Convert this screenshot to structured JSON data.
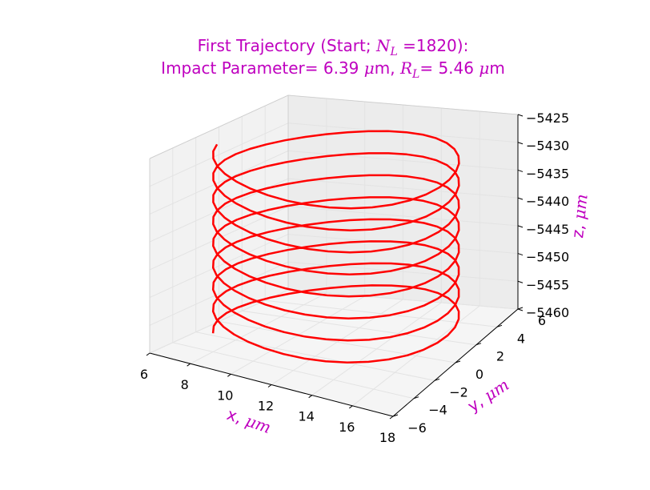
{
  "chart_data": {
    "type": "line",
    "projection": "3d",
    "title": {
      "line1_prefix": "First Trajectory (Start; ",
      "line1_sym": "N",
      "line1_sub": "L",
      "line1_suffix": " =1820):",
      "line2_prefix": "Impact Parameter= 6.39 ",
      "line2_unit_sym": "μ",
      "line2_unit_tail": "m, ",
      "line2_sym": "R",
      "line2_sub": "L",
      "line2_mid": "= 5.46 ",
      "line2_unit2_sym": "μ",
      "line2_unit2_tail": "m"
    },
    "xlabel": {
      "prefix": "x, ",
      "unit_sym": "μ",
      "unit_tail": "m"
    },
    "ylabel": {
      "prefix": "y, ",
      "unit_sym": "μ",
      "unit_tail": "m"
    },
    "zlabel": {
      "prefix": "z, ",
      "unit_sym": "μ",
      "unit_tail": "m"
    },
    "xlim": [
      6,
      18
    ],
    "ylim": [
      -6,
      6
    ],
    "zlim": [
      -5460,
      -5425
    ],
    "xticks": [
      "6",
      "8",
      "10",
      "12",
      "14",
      "16",
      "18"
    ],
    "yticks": [
      "−6",
      "−4",
      "−2",
      "0",
      "2",
      "4",
      "6"
    ],
    "zticks": [
      "−5425",
      "−5430",
      "−5435",
      "−5440",
      "−5445",
      "−5450",
      "−5455",
      "−5460"
    ],
    "grid": true,
    "series": [
      {
        "color": "#ff0000",
        "helix": {
          "center_x": 12.0,
          "center_y": 0.0,
          "radius": 5.46,
          "z_top": -5426.3,
          "z_bottom": -5458.2,
          "turns": 8.05,
          "start_angle_deg": 195
        }
      }
    ]
  }
}
